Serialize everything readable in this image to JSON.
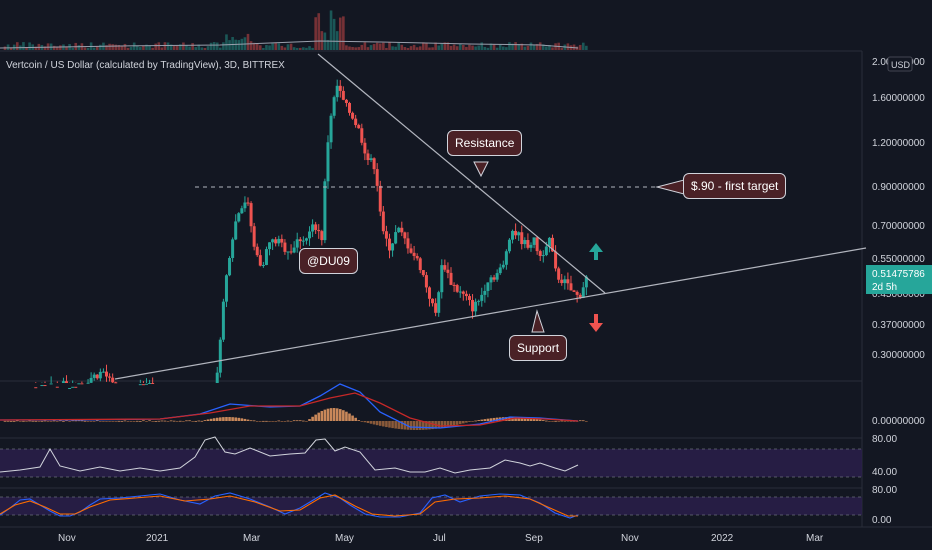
{
  "header": {
    "title": "Vertcoin / US Dollar (calculated by TradingView), 3D, BITTREX"
  },
  "price_axis": {
    "currency": "USD",
    "ticks": [
      "2.00000000",
      "1.60000000",
      "1.20000000",
      "0.90000000",
      "0.70000000",
      "0.55000000",
      "0.45000000",
      "0.37000000",
      "0.30000000"
    ],
    "last_price": "0.51475786",
    "countdown": "2d 5h"
  },
  "time_axis": {
    "labels": [
      "Nov",
      "2021",
      "Mar",
      "May",
      "Jul",
      "Sep",
      "Nov",
      "2022",
      "Mar"
    ]
  },
  "indicators": {
    "macd_tick": "0.00000000",
    "rsi_ticks": [
      "80.00",
      "40.00"
    ],
    "stoch_ticks": [
      "80.00",
      "0.00"
    ]
  },
  "annotations": {
    "resistance": "Resistance",
    "support": "Support",
    "target": "$.90 - first target",
    "author": "@DU09"
  },
  "colors": {
    "bg": "#131722",
    "up": "#26a69a",
    "down": "#ef5350",
    "label_bg": "#4a2126",
    "panel": "#2a1f4a"
  },
  "chart_data": {
    "type": "candlestick",
    "series_title": "Vertcoin / US Dollar (calculated by TradingView), 3D, BITTREX",
    "ylim": [
      0.26,
      2.1
    ],
    "y_scale": "log",
    "time_labels": [
      "Nov",
      "2021",
      "Mar",
      "May",
      "Jul",
      "Sep",
      "Nov",
      "2022",
      "Mar"
    ],
    "close_path": [
      {
        "t": 0.0,
        "c": 0.24
      },
      {
        "t": 0.05,
        "c": 0.25
      },
      {
        "t": 0.1,
        "c": 0.26
      },
      {
        "t": 0.13,
        "c": 0.28
      },
      {
        "t": 0.16,
        "c": 0.22
      },
      {
        "t": 0.19,
        "c": 0.27
      },
      {
        "t": 0.21,
        "c": 0.22
      },
      {
        "t": 0.24,
        "c": 0.21
      },
      {
        "t": 0.26,
        "c": 0.23
      },
      {
        "t": 0.28,
        "c": 0.25
      },
      {
        "t": 0.29,
        "c": 0.45
      },
      {
        "t": 0.3,
        "c": 0.65
      },
      {
        "t": 0.31,
        "c": 0.8
      },
      {
        "t": 0.32,
        "c": 0.85
      },
      {
        "t": 0.33,
        "c": 0.62
      },
      {
        "t": 0.34,
        "c": 0.55
      },
      {
        "t": 0.35,
        "c": 0.64
      },
      {
        "t": 0.36,
        "c": 0.65
      },
      {
        "t": 0.37,
        "c": 0.62
      },
      {
        "t": 0.38,
        "c": 0.61
      },
      {
        "t": 0.39,
        "c": 0.66
      },
      {
        "t": 0.4,
        "c": 0.66
      },
      {
        "t": 0.41,
        "c": 0.72
      },
      {
        "t": 0.42,
        "c": 0.66
      },
      {
        "t": 0.43,
        "c": 1.4
      },
      {
        "t": 0.44,
        "c": 1.75
      },
      {
        "t": 0.45,
        "c": 1.55
      },
      {
        "t": 0.46,
        "c": 1.45
      },
      {
        "t": 0.47,
        "c": 1.3
      },
      {
        "t": 0.48,
        "c": 1.1
      },
      {
        "t": 0.49,
        "c": 1.05
      },
      {
        "t": 0.5,
        "c": 0.68
      },
      {
        "t": 0.51,
        "c": 0.62
      },
      {
        "t": 0.52,
        "c": 0.7
      },
      {
        "t": 0.53,
        "c": 0.65
      },
      {
        "t": 0.54,
        "c": 0.6
      },
      {
        "t": 0.55,
        "c": 0.55
      },
      {
        "t": 0.56,
        "c": 0.47
      },
      {
        "t": 0.57,
        "c": 0.4
      },
      {
        "t": 0.58,
        "c": 0.57
      },
      {
        "t": 0.59,
        "c": 0.5
      },
      {
        "t": 0.6,
        "c": 0.47
      },
      {
        "t": 0.61,
        "c": 0.45
      },
      {
        "t": 0.62,
        "c": 0.42
      },
      {
        "t": 0.63,
        "c": 0.45
      },
      {
        "t": 0.64,
        "c": 0.51
      },
      {
        "t": 0.65,
        "c": 0.52
      },
      {
        "t": 0.66,
        "c": 0.55
      },
      {
        "t": 0.67,
        "c": 0.7
      },
      {
        "t": 0.68,
        "c": 0.67
      },
      {
        "t": 0.69,
        "c": 0.63
      },
      {
        "t": 0.7,
        "c": 0.65
      },
      {
        "t": 0.71,
        "c": 0.58
      },
      {
        "t": 0.72,
        "c": 0.67
      },
      {
        "t": 0.73,
        "c": 0.52
      },
      {
        "t": 0.74,
        "c": 0.5
      },
      {
        "t": 0.75,
        "c": 0.47
      },
      {
        "t": 0.76,
        "c": 0.45
      },
      {
        "t": 0.77,
        "c": 0.51
      }
    ]
  }
}
